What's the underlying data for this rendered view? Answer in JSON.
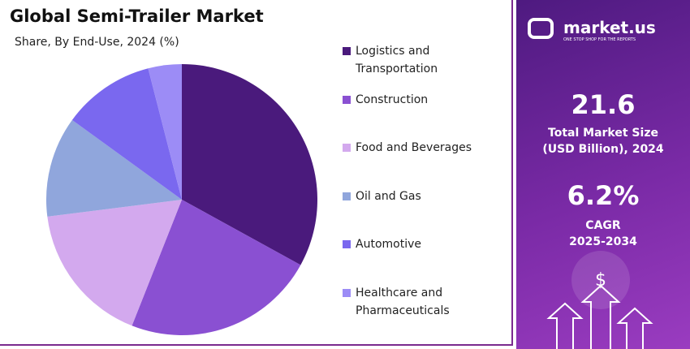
{
  "chart_data": {
    "type": "pie",
    "title": "Global Semi-Trailer Market",
    "subtitle": "Share, By End-Use, 2024 (%)",
    "categories": [
      "Logistics and Transportation",
      "Construction",
      "Food and Beverages",
      "Oil and Gas",
      "Automotive",
      "Healthcare and Pharmaceuticals"
    ],
    "values": [
      33,
      23,
      17,
      12,
      11,
      4
    ],
    "colors": [
      "#4a1a7c",
      "#8a50d2",
      "#d3a9ee",
      "#90a6dc",
      "#7a68ef",
      "#9c8cf6"
    ],
    "legend": "right"
  },
  "side_panel": {
    "logo": "market.us",
    "tagline": "ONE STOP SHOP FOR THE REPORTS",
    "market_size": "21.6",
    "market_size_label_1": "Total Market Size",
    "market_size_label_2": "(USD Billion), 2024",
    "cagr": "6.2%",
    "cagr_label_1": "CAGR",
    "cagr_label_2": "2025-2034"
  }
}
